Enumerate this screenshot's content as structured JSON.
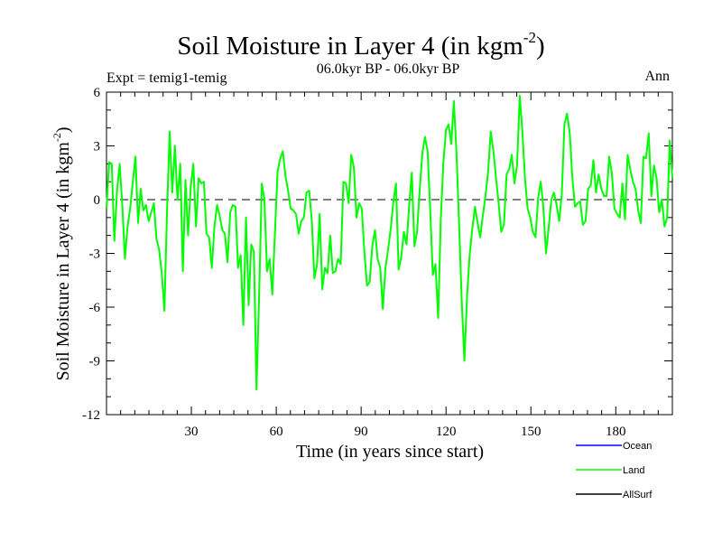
{
  "chart_data": {
    "type": "line",
    "title_main": "Soil Moisture in Layer 4 (in kgm",
    "title_sup": "-2",
    "title_close": ")",
    "subtitle": "06.0kyr BP - 06.0kyr BP",
    "left_label": "Expt = temig1-temig",
    "right_label": "Ann",
    "xlabel": "Time (in years since start)",
    "ylabel_main": "Soil Moisture in Layer 4 (in kgm",
    "ylabel_sup": "-2",
    "ylabel_close": ")",
    "xlim": [
      0,
      200
    ],
    "ylim": [
      -12,
      6
    ],
    "xticks": [
      30,
      60,
      90,
      120,
      150,
      180
    ],
    "yticks": [
      6,
      3,
      0,
      -3,
      -6,
      -9,
      -12
    ],
    "zero_line": true,
    "series": [
      {
        "name": "Ocean",
        "color": "#0000ff",
        "values": []
      },
      {
        "name": "Land",
        "color": "#00ff00",
        "values": [
          -0.5,
          2.1,
          2.0,
          -2.3,
          0.5,
          2.0,
          -0.3,
          -3.3,
          -1.5,
          -0.5,
          1.0,
          2.4,
          -1.3,
          0.6,
          -0.6,
          -0.3,
          -1.2,
          -0.7,
          -0.2,
          -2.2,
          -2.8,
          -4.1,
          -6.2,
          -0.6,
          3.8,
          0.4,
          3.0,
          0.0,
          2.0,
          -4.0,
          1.1,
          -2.0,
          0.7,
          2.0,
          -1.5,
          1.2,
          0.9,
          1.0,
          -1.9,
          -2.1,
          -3.8,
          -1.5,
          -0.3,
          -0.9,
          -1.7,
          -1.9,
          -3.5,
          -0.7,
          -0.3,
          -0.4,
          -3.8,
          -3.1,
          -7.0,
          -1.0,
          -5.9,
          -2.5,
          -2.9,
          -10.6,
          -5.4,
          0.9,
          0.0,
          -4.0,
          -3.3,
          -5.3,
          -1.9,
          1.6,
          2.3,
          2.7,
          1.3,
          0.5,
          -0.5,
          -0.6,
          -0.8,
          -1.9,
          -1.2,
          -1.0,
          0.4,
          0.5,
          -1.2,
          -4.4,
          -3.6,
          -0.8,
          -5.0,
          -3.8,
          -4.1,
          -2.0,
          -4.1,
          -4.0,
          -3.3,
          -3.6,
          1.0,
          0.9,
          -0.2,
          2.5,
          1.8,
          -1.0,
          -0.2,
          -0.5,
          -3.0,
          -4.8,
          -4.6,
          -2.6,
          -1.7,
          -3.3,
          -3.8,
          -6.1,
          -3.8,
          -2.8,
          -1.6,
          -0.1,
          0.9,
          -3.9,
          -3.2,
          -1.8,
          -2.5,
          -0.3,
          1.5,
          -2.6,
          -1.8,
          0.5,
          2.6,
          3.5,
          2.7,
          -0.6,
          -4.2,
          -3.6,
          -6.6,
          -1.1,
          2.1,
          3.9,
          4.2,
          3.1,
          5.5,
          2.5,
          -1.5,
          -5.8,
          -9.0,
          -5.4,
          -3.1,
          -1.6,
          -0.4,
          -1.3,
          -2.1,
          -0.9,
          0.2,
          1.6,
          3.8,
          2.7,
          1.2,
          -0.2,
          -1.8,
          -1.4,
          1.4,
          1.7,
          2.5,
          0.9,
          1.9,
          5.8,
          3.8,
          1.2,
          -0.5,
          -1.0,
          -1.8,
          -2.1,
          0.1,
          1.0,
          -0.5,
          -3.0,
          -1.6,
          0.0,
          0.4,
          -0.3,
          -1.2,
          0.3,
          4.2,
          4.8,
          3.7,
          1.2,
          -0.4,
          -0.2,
          -0.1,
          -1.4,
          -1.2,
          0.6,
          0.8,
          2.2,
          0.4,
          1.4,
          0.6,
          0.2,
          0.2,
          2.4,
          1.5,
          -0.5,
          -0.8,
          -1.0,
          0.9,
          -1.1,
          2.5,
          1.7,
          1.0,
          0.6,
          -0.6,
          -1.3,
          2.4,
          2.3,
          3.7,
          0.2,
          1.9,
          1.2,
          -0.7,
          0.0,
          -1.5,
          -1.0,
          3.3,
          1.2
        ]
      },
      {
        "name": "AllSurf",
        "color": "#000000",
        "values": []
      }
    ]
  }
}
